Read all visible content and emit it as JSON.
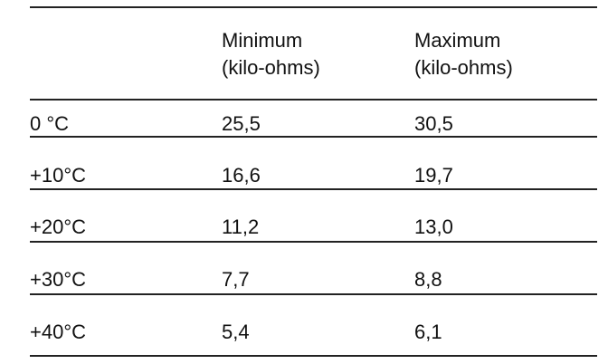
{
  "table": {
    "header": [
      [
        "Minimum",
        "(kilo-ohms)"
      ],
      [
        "Maximum",
        "(kilo-ohms)"
      ]
    ],
    "rows": [
      [
        "0 °C",
        "25,5",
        "30,5"
      ],
      [
        "+10°C",
        "16,6",
        "19,7"
      ],
      [
        "+20°C",
        "11,2",
        "13,0"
      ],
      [
        "+30°C",
        "7,7",
        "8,8"
      ],
      [
        "+40°C",
        "5,4",
        "6,1"
      ]
    ]
  }
}
